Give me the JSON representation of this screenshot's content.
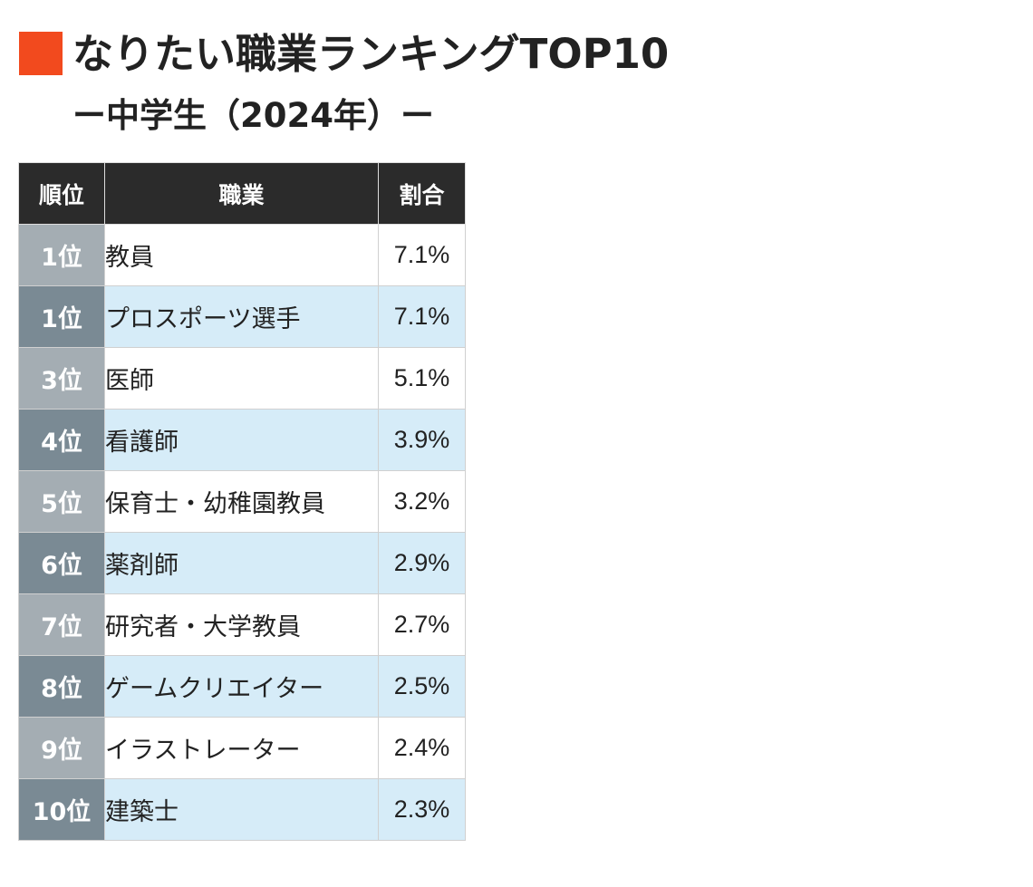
{
  "header": {
    "title": "なりたい職業ランキングTOP10",
    "subtitle": "ー中学生（2024年）ー",
    "marker_color": "#F24A1E"
  },
  "colors": {
    "header_bg": "#2B2B2B",
    "rank_bg_odd": "#A4ADB3",
    "rank_bg_even": "#7A8A94",
    "row_bg_odd": "#FFFFFF",
    "row_bg_even": "#D6ECF8"
  },
  "chart_data": {
    "type": "table",
    "columns": [
      "順位",
      "職業",
      "割合"
    ],
    "rows": [
      {
        "rank": "1位",
        "job": "教員",
        "share": "7.1%"
      },
      {
        "rank": "1位",
        "job": "プロスポーツ選手",
        "share": "7.1%"
      },
      {
        "rank": "3位",
        "job": "医師",
        "share": "5.1%"
      },
      {
        "rank": "4位",
        "job": "看護師",
        "share": "3.9%"
      },
      {
        "rank": "5位",
        "job": "保育士・幼稚園教員",
        "share": "3.2%"
      },
      {
        "rank": "6位",
        "job": "薬剤師",
        "share": "2.9%"
      },
      {
        "rank": "7位",
        "job": "研究者・大学教員",
        "share": "2.7%"
      },
      {
        "rank": "8位",
        "job": "ゲームクリエイター",
        "share": "2.5%"
      },
      {
        "rank": "9位",
        "job": "イラストレーター",
        "share": "2.4%"
      },
      {
        "rank": "10位",
        "job": "建築士",
        "share": "2.3%"
      }
    ]
  }
}
